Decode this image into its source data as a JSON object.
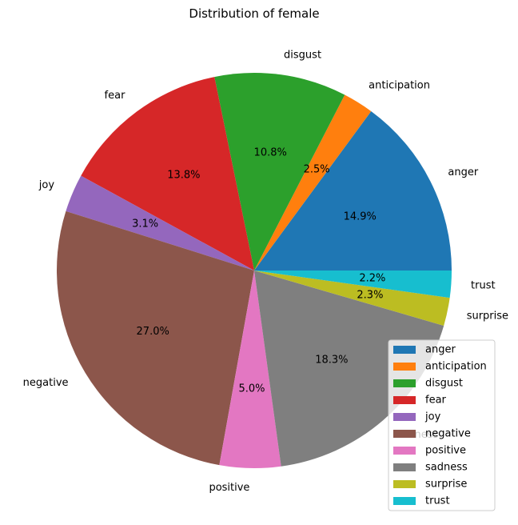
{
  "chart_data": {
    "type": "pie",
    "title": "Distribution of female",
    "categories": [
      "anger",
      "anticipation",
      "disgust",
      "fear",
      "joy",
      "negative",
      "positive",
      "sadness",
      "surprise",
      "trust"
    ],
    "values": [
      14.9,
      2.5,
      10.8,
      13.8,
      3.1,
      27.0,
      5.0,
      18.3,
      2.3,
      2.2
    ],
    "value_labels": [
      "14.9%",
      "2.5%",
      "10.8%",
      "13.8%",
      "3.1%",
      "27.0%",
      "5.0%",
      "18.3%",
      "2.3%",
      "2.2%"
    ],
    "colors": [
      "#1f77b4",
      "#ff7f0e",
      "#2ca02c",
      "#d62728",
      "#9467bd",
      "#8c564b",
      "#e377c2",
      "#7f7f7f",
      "#bcbd22",
      "#17becf"
    ],
    "start_angle_deg": 0,
    "direction": "counterclockwise",
    "legend_position": "lower-right"
  }
}
